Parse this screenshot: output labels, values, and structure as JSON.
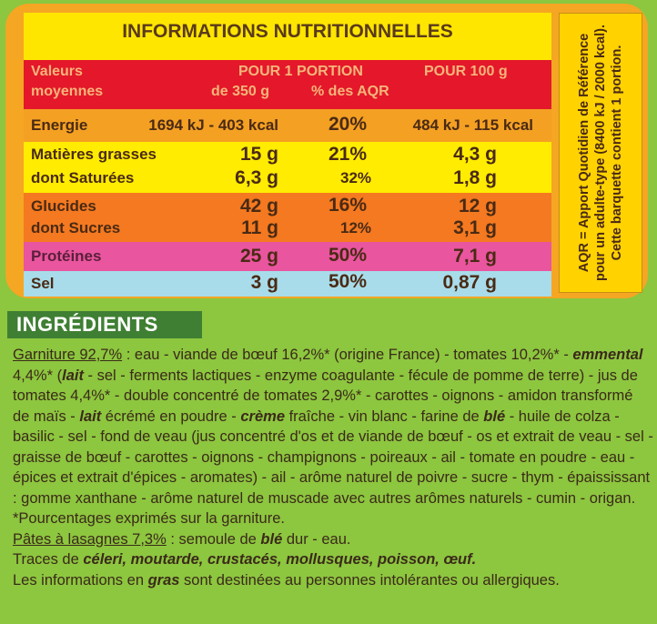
{
  "nutrition": {
    "title": "INFORMATIONS NUTRITIONNELLES",
    "header": {
      "label_line1": "Valeurs",
      "label_line2": "moyennes",
      "portion_title": "POUR 1 PORTION",
      "portion_size": "de 350 g",
      "portion_aqr": "% des AQR",
      "per100_title": "POUR 100 g"
    },
    "rows": [
      {
        "label": "Energie",
        "portion": "1694 kJ - 403 kcal",
        "aqr": "20%",
        "per100": "484 kJ - 115 kcal"
      },
      {
        "label": "Matières grasses",
        "portion": "15 g",
        "aqr": "21%",
        "per100": "4,3 g"
      },
      {
        "label": "dont Saturées",
        "portion": "6,3 g",
        "aqr": "32%",
        "per100": "1,8 g"
      },
      {
        "label": "Glucides",
        "portion": "42 g",
        "aqr": "16%",
        "per100": "12 g"
      },
      {
        "label": "dont Sucres",
        "portion": "11 g",
        "aqr": "12%",
        "per100": "3,1 g"
      },
      {
        "label": "Protéines",
        "portion": "25 g",
        "aqr": "50%",
        "per100": "7,1 g"
      },
      {
        "label": "Sel",
        "portion": "3 g",
        "aqr": "50%",
        "per100": "0,87 g"
      }
    ],
    "side_note": "AQR = Apport Quotidien de Référence pour un adulte-type (8400 kJ / 2000 kcal). Cette barquette contient 1 portion.",
    "colors": {
      "panel": "#f5a623",
      "header_row": "#e4182a",
      "energie_row": "#f4a023",
      "fat_row": "#ffec00",
      "carb_row": "#f47920",
      "protein_row": "#e9559e",
      "salt_row": "#a8dcea"
    }
  },
  "ingredients": {
    "heading": "INGRÉDIENTS",
    "garniture_label": "Garniture 92,7%",
    "t1": " : eau - viande de bœuf 16,2%* (origine France) - tomates 10,2%* -",
    "emmental": "emmental",
    "t2": " 4,4%* (",
    "lait1": "lait",
    "t3": " - sel - ferments lactiques - enzyme coagulante - fécule de pomme de terre) - jus de tomates 4,4%* - double concentré de tomates 2,9%* - carottes - oignons - amidon transformé de maïs - ",
    "lait2": "lait",
    "t4": " écrémé en poudre - ",
    "creme": "crème",
    "t5": " fraîche - vin blanc - farine de ",
    "ble1": "blé",
    "t6": " - huile de colza - basilic - sel - fond de veau (jus concentré d'os et de viande de bœuf - os et extrait de veau - sel - graisse de bœuf - carottes - oignons - champignons - poireaux - ail - tomate en poudre - eau - épices et extrait d'épices - aromates) - ail - arôme naturel de poivre - sucre - thym - épaississant : gomme xanthane - arôme naturel de muscade avec autres arômes naturels - cumin - origan. *Pourcentages exprimés sur la garniture.",
    "pates_label": "Pâtes à lasagnes 7,3%",
    "t7": " : semoule de ",
    "ble2": "blé",
    "t8": " dur - eau.",
    "traces_prefix": "Traces de ",
    "traces_list": "céleri, moutarde, crustacés, mollusques, poisson, œuf.",
    "info_prefix": "Les informations en ",
    "gras": "gras",
    "info_suffix": " sont destinées au personnes intolérantes ou allergiques."
  }
}
